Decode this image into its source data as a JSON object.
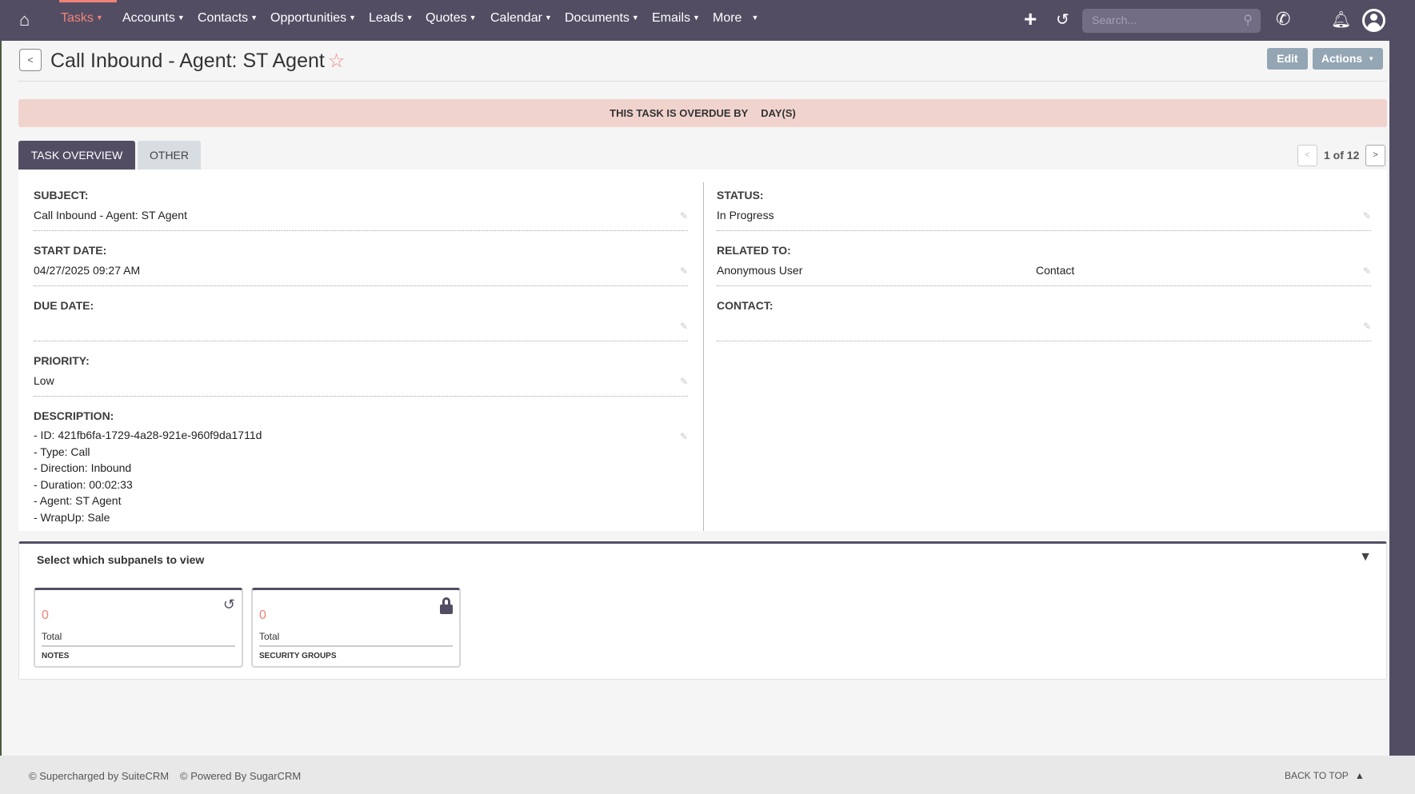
{
  "nav": {
    "items": [
      {
        "label": "Tasks",
        "active": true
      },
      {
        "label": "Accounts"
      },
      {
        "label": "Contacts"
      },
      {
        "label": "Opportunities"
      },
      {
        "label": "Leads"
      },
      {
        "label": "Quotes"
      },
      {
        "label": "Calendar"
      },
      {
        "label": "Documents"
      },
      {
        "label": "Emails"
      },
      {
        "label": "More"
      }
    ],
    "search_placeholder": "Search...",
    "icons": [
      "home-icon",
      "plus-icon",
      "history-icon",
      "search-icon",
      "phone-icon",
      "bell-icon",
      "user-icon"
    ]
  },
  "header": {
    "back": "<",
    "title": "Call Inbound - Agent: ST Agent",
    "edit": "Edit",
    "actions": "Actions"
  },
  "overdue": {
    "prefix": "THIS TASK IS OVERDUE BY",
    "suffix": "DAY(S)"
  },
  "tabs": [
    {
      "label": "TASK OVERVIEW",
      "active": true
    },
    {
      "label": "OTHER"
    }
  ],
  "pager": {
    "prev": "<",
    "text": "1 of 12",
    "next": ">"
  },
  "left_fields": {
    "subject": {
      "label": "SUBJECT:",
      "value": "Call Inbound - Agent: ST Agent"
    },
    "start_date": {
      "label": "START DATE:",
      "value": "04/27/2025 09:27 AM"
    },
    "due_date": {
      "label": "DUE DATE:",
      "value": ""
    },
    "priority": {
      "label": "PRIORITY:",
      "value": "Low"
    },
    "description": {
      "label": "DESCRIPTION:",
      "lines": [
        "- ID: 421fb6fa-1729-4a28-921e-960f9da1711d",
        "- Type: Call",
        "- Direction: Inbound",
        "- Duration: 00:02:33",
        "- Agent: ST Agent",
        "- WrapUp: Sale"
      ]
    }
  },
  "right_fields": {
    "status": {
      "label": "STATUS:",
      "value": "In Progress"
    },
    "related_to": {
      "label": "RELATED TO:",
      "value": "Anonymous User",
      "type": "Contact"
    },
    "contact": {
      "label": "CONTACT:",
      "value": ""
    }
  },
  "subpanels": {
    "title": "Select which subpanels to view",
    "cards": [
      {
        "count": "0",
        "total": "Total",
        "name": "NOTES",
        "icon": "history-icon"
      },
      {
        "count": "0",
        "total": "Total",
        "name": "SECURITY GROUPS",
        "icon": "lock-icon"
      }
    ]
  },
  "footer": {
    "suitecrm": "© Supercharged by SuiteCRM",
    "sugarcrm": "© Powered By SugarCRM",
    "back_to_top": "BACK TO TOP"
  },
  "colors": {
    "nav": "#534d64",
    "accent": "#f08377",
    "overdue_bg": "#f1d3ce",
    "button": "#94a6b4"
  }
}
